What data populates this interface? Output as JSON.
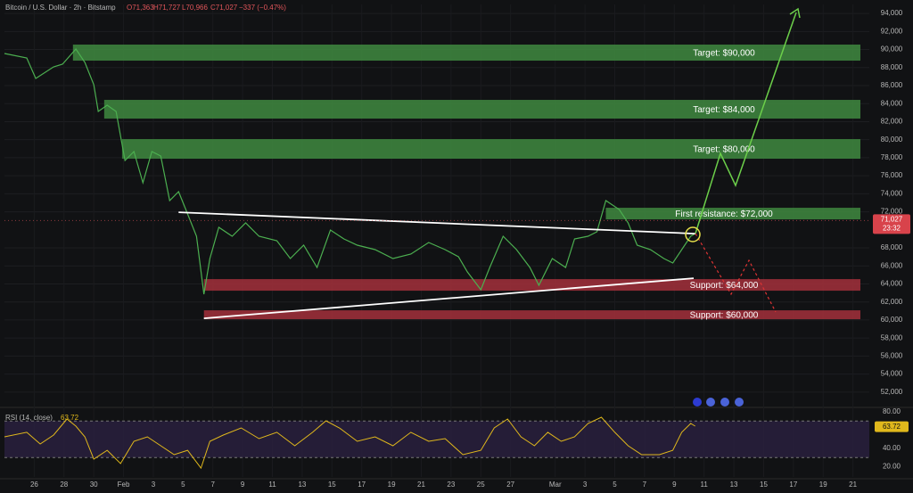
{
  "header": {
    "symbol": "Bitcoin / U.S. Dollar · 2h · Bitstamp",
    "open": "O71,363",
    "high": "H71,727",
    "low": "L70,966",
    "close": "C71,027",
    "change": "−337 (−0.47%)"
  },
  "chart_data": [
    {
      "type": "line",
      "xlim": [
        -2,
        56.1
      ],
      "ylim": [
        50500,
        95000
      ],
      "yticks": [
        {
          "value": 94000,
          "label": "94,000"
        },
        {
          "value": 92000,
          "label": "92,000"
        },
        {
          "value": 90000,
          "label": "90,000"
        },
        {
          "value": 88000,
          "label": "88,000"
        },
        {
          "value": 86000,
          "label": "86,000"
        },
        {
          "value": 84000,
          "label": "84,000"
        },
        {
          "value": 82000,
          "label": "82,000"
        },
        {
          "value": 80000,
          "label": "80,000"
        },
        {
          "value": 78000,
          "label": "78,000"
        },
        {
          "value": 76000,
          "label": "76,000"
        },
        {
          "value": 74000,
          "label": "74,000"
        },
        {
          "value": 72000,
          "label": "72,000"
        },
        {
          "value": 68000,
          "label": "68,000"
        },
        {
          "value": 66000,
          "label": "66,000"
        },
        {
          "value": 64000,
          "label": "64,000"
        },
        {
          "value": 62000,
          "label": "62,000"
        },
        {
          "value": 60000,
          "label": "60,000"
        },
        {
          "value": 58000,
          "label": "58,000"
        },
        {
          "value": 56000,
          "label": "56,000"
        },
        {
          "value": 54000,
          "label": "54,000"
        },
        {
          "value": 52000,
          "label": "52,000"
        }
      ],
      "grid": true,
      "price": {
        "color": "#4caf50",
        "x": [
          -2.0,
          -0.5,
          0.1,
          1.3,
          1.9,
          2.8,
          3.4,
          4.0,
          4.3,
          4.9,
          5.5,
          6.1,
          6.7,
          7.3,
          7.9,
          8.5,
          9.1,
          9.7,
          10.3,
          10.9,
          11.4,
          11.8,
          12.4,
          13.3,
          14.2,
          15.1,
          16.3,
          17.2,
          18.1,
          19.0,
          19.9,
          20.8,
          21.7,
          22.9,
          24.1,
          25.3,
          26.5,
          27.6,
          28.5,
          29.1,
          30.0,
          30.6,
          31.5,
          32.4,
          33.3,
          33.9,
          34.8,
          35.7,
          36.3,
          37.2,
          37.8,
          38.4,
          39.3,
          39.9,
          40.5,
          41.4,
          42.3,
          42.9,
          43.5,
          44.1,
          44.4
        ],
        "values": [
          89560,
          89066,
          86790,
          88077,
          88374,
          90055,
          88572,
          86099,
          83132,
          83824,
          83132,
          77693,
          78682,
          75220,
          78682,
          78187,
          73242,
          74231,
          71758,
          69286,
          62857,
          66813,
          70275,
          69286,
          70769,
          69286,
          68791,
          66813,
          68297,
          65824,
          69978,
          68989,
          68297,
          67802,
          66813,
          67308,
          68594,
          67802,
          67011,
          65330,
          63352,
          65824,
          69286,
          67802,
          65824,
          63846,
          66813,
          65824,
          68989,
          69286,
          69780,
          73242,
          72253,
          70769,
          68297,
          67802,
          66813,
          66319,
          67802,
          69286,
          69579
        ]
      },
      "zones": [
        {
          "label": "Target: $90,000",
          "low": 88768,
          "high": 90549,
          "x0": 2.6,
          "x1": 55.5,
          "color": "#3f8a3f"
        },
        {
          "label": "Target: $84,000",
          "low": 82339,
          "high": 84416,
          "x0": 4.7,
          "x1": 55.5,
          "color": "#3f8a3f"
        },
        {
          "label": "Target: $80,000",
          "low": 77888,
          "high": 80064,
          "x0": 5.9,
          "x1": 55.5,
          "color": "#3f8a3f"
        },
        {
          "label": "First resistance: $72,000",
          "low": 71161,
          "high": 72447,
          "x0": 38.4,
          "x1": 55.5,
          "color": "#3f8a3f"
        },
        {
          "label": "Support: $64,000",
          "low": 63249,
          "high": 64535,
          "x0": 11.4,
          "x1": 55.5,
          "color": "#a3303b"
        },
        {
          "label": "Support: $60,000",
          "low": 60084,
          "high": 61073,
          "x0": 11.4,
          "x1": 55.5,
          "color": "#a3303b"
        }
      ],
      "trendlines": [
        {
          "x": [
            9.7,
            44.4
          ],
          "values": [
            71953,
            69579
          ],
          "color": "#ffffff"
        },
        {
          "x": [
            11.4,
            44.3
          ],
          "values": [
            60183,
            64634
          ],
          "color": "#ffffff"
        }
      ],
      "last_price": {
        "value": 71027,
        "label": "71,027"
      },
      "countdown": "23:32"
    },
    {
      "type": "line",
      "name": "RSI (14, close)",
      "xlim": [
        -2,
        56.1
      ],
      "ylim": [
        8.8,
        86.8
      ],
      "yticks": [
        {
          "value": 80,
          "label": "80.00"
        },
        {
          "value": 40,
          "label": "40.00"
        },
        {
          "value": 20,
          "label": "20.00"
        }
      ],
      "band": [
        30,
        70
      ],
      "last_value": 63.72,
      "color": "#e0b81c",
      "x": [
        -2.0,
        -0.5,
        0.4,
        1.3,
        2.2,
        2.8,
        3.4,
        4.0,
        4.9,
        5.8,
        6.7,
        7.6,
        8.5,
        9.4,
        10.3,
        11.2,
        11.8,
        12.7,
        13.9,
        15.1,
        16.3,
        17.5,
        18.7,
        19.6,
        20.5,
        21.7,
        22.9,
        24.1,
        25.3,
        26.5,
        27.6,
        28.8,
        30.0,
        30.9,
        31.8,
        32.7,
        33.6,
        34.5,
        35.4,
        36.3,
        37.2,
        38.1,
        39.0,
        39.9,
        40.8,
        42.0,
        42.9,
        43.5,
        44.1,
        44.4
      ],
      "values": [
        52.7,
        57.6,
        44.9,
        54.6,
        72.2,
        64.4,
        52.7,
        28.3,
        38.0,
        23.4,
        47.8,
        52.7,
        42.9,
        33.2,
        38.0,
        18.5,
        47.8,
        54.6,
        62.4,
        50.7,
        57.6,
        42.9,
        57.6,
        70.2,
        62.4,
        47.8,
        52.7,
        42.9,
        57.6,
        47.8,
        50.7,
        33.2,
        38.0,
        62.4,
        72.2,
        52.7,
        42.9,
        57.6,
        47.8,
        52.7,
        67.3,
        74.1,
        57.6,
        42.9,
        33.2,
        33.2,
        38.0,
        57.6,
        67.3,
        64.4
      ],
      "xticks": [
        {
          "value": 0,
          "label": "26"
        },
        {
          "value": 2,
          "label": "28"
        },
        {
          "value": 4,
          "label": "30"
        },
        {
          "value": 6,
          "label": "Feb"
        },
        {
          "value": 8,
          "label": "3"
        },
        {
          "value": 10,
          "label": "5"
        },
        {
          "value": 12,
          "label": "7"
        },
        {
          "value": 14,
          "label": "9"
        },
        {
          "value": 16,
          "label": "11"
        },
        {
          "value": 18,
          "label": "13"
        },
        {
          "value": 20,
          "label": "15"
        },
        {
          "value": 22,
          "label": "17"
        },
        {
          "value": 24,
          "label": "19"
        },
        {
          "value": 26,
          "label": "21"
        },
        {
          "value": 28,
          "label": "23"
        },
        {
          "value": 30,
          "label": "25"
        },
        {
          "value": 32,
          "label": "27"
        },
        {
          "value": 35,
          "label": "Mar"
        },
        {
          "value": 37,
          "label": "3"
        },
        {
          "value": 39,
          "label": "5"
        },
        {
          "value": 41,
          "label": "7"
        },
        {
          "value": 43,
          "label": "9"
        },
        {
          "value": 45,
          "label": "11"
        },
        {
          "value": 47,
          "label": "13"
        },
        {
          "value": 49,
          "label": "15"
        },
        {
          "value": 51,
          "label": "17"
        },
        {
          "value": 53,
          "label": "19"
        },
        {
          "value": 55,
          "label": "21"
        }
      ]
    }
  ]
}
